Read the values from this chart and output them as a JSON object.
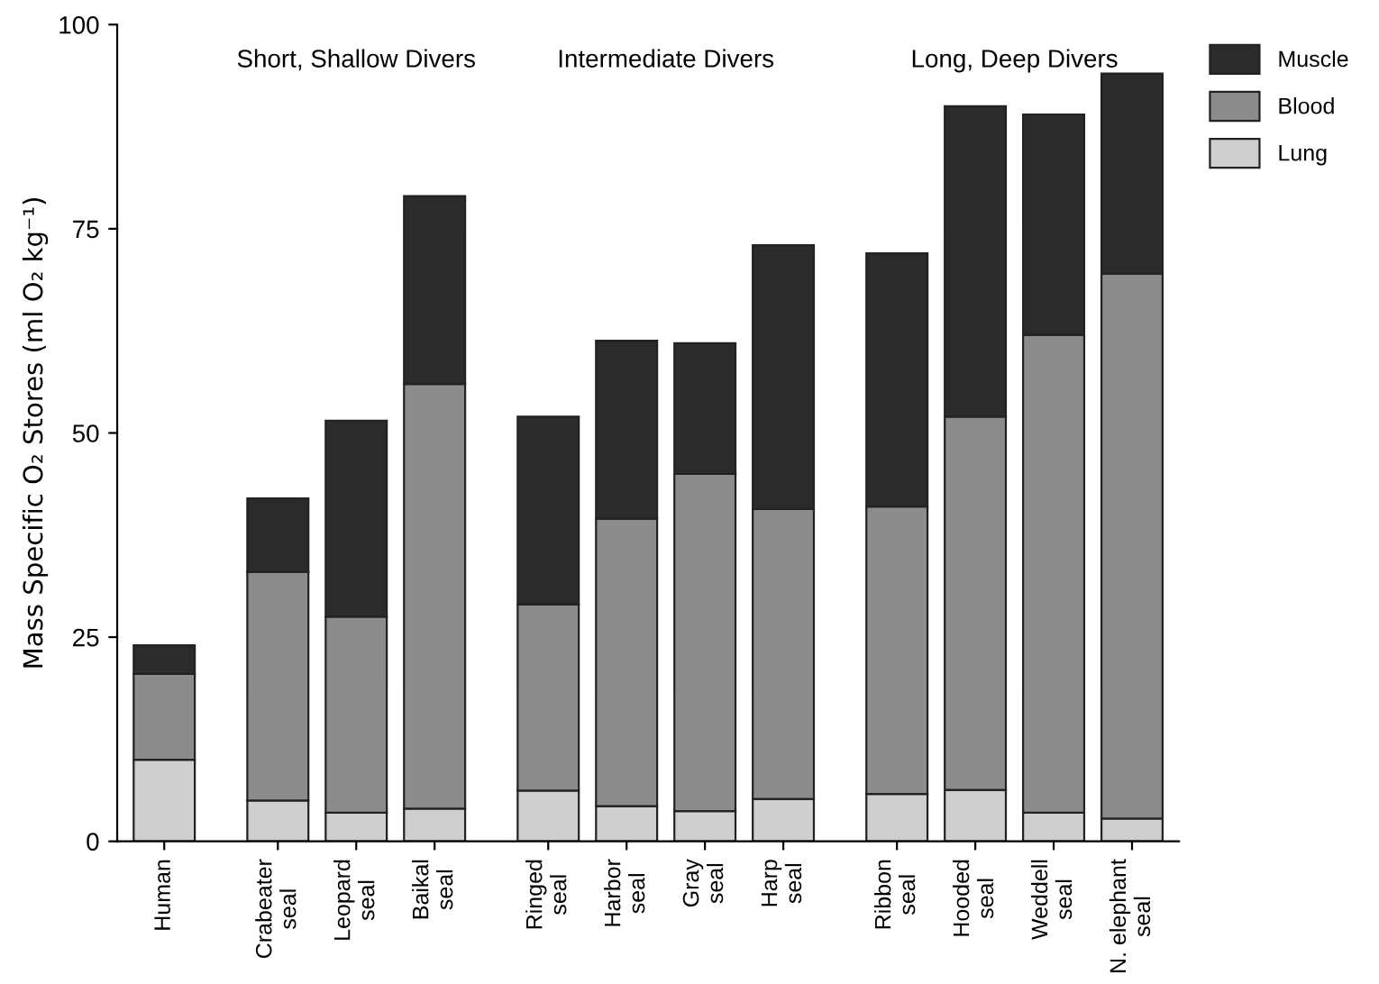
{
  "chart_data": {
    "type": "bar",
    "stacked": true,
    "ylabel": "Mass Specific O₂ Stores (ml O₂ kg⁻¹)",
    "categories": [
      "Human",
      "Crabeater\nseal",
      "Leopard\nseal",
      "Baikal\nseal",
      "Ringed\nseal",
      "Harbor\nseal",
      "Gray\nseal",
      "Harp\nseal",
      "Ribbon\nseal",
      "Hooded\nseal",
      "Weddell\nseal",
      "N. elephant\nseal"
    ],
    "series": [
      {
        "name": "Lung",
        "color": "#cfcfcf",
        "values": [
          10,
          5,
          3.5,
          4,
          6.2,
          4.3,
          3.7,
          5.2,
          5.8,
          6.3,
          3.5,
          2.8
        ]
      },
      {
        "name": "Blood",
        "color": "#8c8c8c",
        "values": [
          10.5,
          28,
          24,
          52,
          22.8,
          35.2,
          41.3,
          35.5,
          35.2,
          45.7,
          58.5,
          66.7
        ]
      },
      {
        "name": "Muscle",
        "color": "#2b2b2b",
        "values": [
          3.5,
          9,
          24,
          23,
          23,
          21.8,
          16,
          32.3,
          31,
          38,
          27,
          24.5
        ]
      }
    ],
    "annotations": [
      "Short, Shallow Divers",
      "Intermediate Divers",
      "Long, Deep Divers"
    ],
    "ylim": [
      0,
      100
    ],
    "yticks": [
      0,
      25,
      50,
      75,
      100
    ],
    "grid": false,
    "legend": "top right"
  }
}
